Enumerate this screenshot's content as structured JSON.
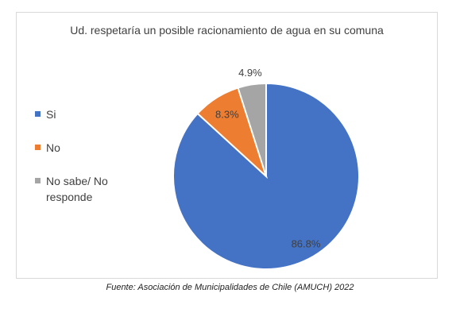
{
  "chart_data": {
    "type": "pie",
    "title": "Ud. respetaría un posible racionamiento de agua en su comuna",
    "categories": [
      "Si",
      "No",
      "No sabe/ No responde"
    ],
    "values": [
      86.8,
      8.3,
      4.9
    ],
    "labels": [
      "86.8%",
      "8.3%",
      "4.9%"
    ],
    "colors": [
      "#4472C4",
      "#ED7D31",
      "#A5A5A5"
    ],
    "legend_position": "left"
  },
  "source": "Fuente: Asociación de Municipalidades de Chile (AMUCH) 2022"
}
